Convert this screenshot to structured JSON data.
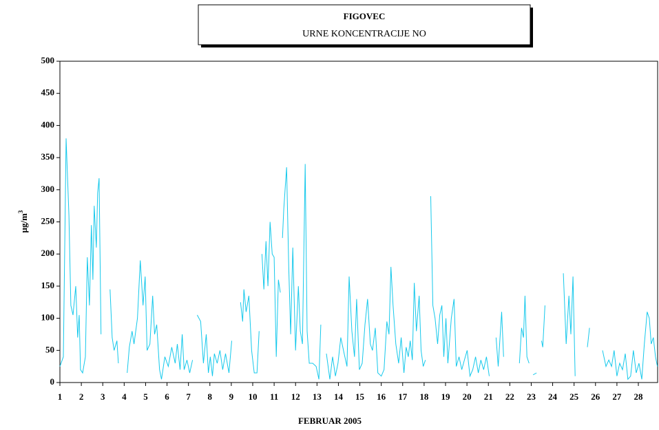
{
  "chart_data": {
    "type": "line",
    "title": "FIGOVEC",
    "subtitle": "URNE  KONCENTRACIJE  NO",
    "xlabel": "FEBRUAR  2005",
    "ylabel": "μg/m",
    "ylabel_superscript": "3",
    "xlim": [
      1,
      28.9
    ],
    "ylim": [
      0,
      500
    ],
    "xticks": [
      1,
      2,
      3,
      4,
      5,
      6,
      7,
      8,
      9,
      10,
      11,
      12,
      13,
      14,
      15,
      16,
      17,
      18,
      19,
      20,
      21,
      22,
      23,
      24,
      25,
      26,
      27,
      28
    ],
    "yticks": [
      0,
      50,
      100,
      150,
      200,
      250,
      300,
      350,
      400,
      450,
      500
    ],
    "grid": false,
    "series": [
      {
        "color": "#14c8eb",
        "x": [
          1.0,
          1.16,
          1.29,
          1.42,
          1.51,
          1.61,
          1.74,
          1.83,
          1.9,
          1.96,
          2.06,
          2.19,
          2.28,
          2.38,
          2.47,
          2.54,
          2.6,
          2.7,
          2.76,
          2.83,
          2.92,
          3.1,
          3.34,
          3.44,
          3.53,
          3.66,
          3.73,
          3.9,
          4.14,
          4.24,
          4.37,
          4.46,
          4.62,
          4.75,
          4.88,
          4.98,
          5.07,
          5.2,
          5.33,
          5.42,
          5.52,
          5.65,
          5.74,
          5.9,
          6.06,
          6.22,
          6.38,
          6.48,
          6.61,
          6.71,
          6.8,
          6.93,
          7.06,
          7.19,
          7.3,
          7.41,
          7.57,
          7.7,
          7.83,
          7.93,
          8.02,
          8.12,
          8.21,
          8.34,
          8.47,
          8.6,
          8.73,
          8.89,
          9.02,
          9.2,
          9.43,
          9.53,
          9.59,
          9.69,
          9.82,
          9.95,
          10.07,
          10.2,
          10.3,
          10.37,
          10.43,
          10.52,
          10.62,
          10.71,
          10.81,
          10.91,
          11.0,
          11.1,
          11.2,
          11.29,
          11.34,
          11.39,
          11.45,
          11.58,
          11.68,
          11.77,
          11.87,
          12.0,
          12.13,
          12.22,
          12.32,
          12.45,
          12.54,
          12.64,
          12.8,
          12.96,
          13.09,
          13.18,
          13.3,
          13.44,
          13.6,
          13.73,
          13.86,
          13.98,
          14.11,
          14.27,
          14.4,
          14.5,
          14.63,
          14.75,
          14.85,
          14.98,
          15.11,
          15.24,
          15.36,
          15.49,
          15.59,
          15.72,
          15.84,
          16.0,
          16.13,
          16.26,
          16.36,
          16.45,
          16.55,
          16.68,
          16.81,
          16.93,
          17.06,
          17.16,
          17.26,
          17.35,
          17.45,
          17.54,
          17.64,
          17.77,
          17.86,
          17.96,
          18.06,
          18.2,
          18.31,
          18.41,
          18.51,
          18.63,
          18.73,
          18.83,
          18.92,
          19.02,
          19.11,
          19.27,
          19.4,
          19.5,
          19.63,
          19.76,
          19.88,
          20.01,
          20.14,
          20.27,
          20.4,
          20.53,
          20.65,
          20.78,
          20.91,
          21.04,
          21.2,
          21.36,
          21.46,
          21.62,
          21.71,
          22.1,
          22.45,
          22.55,
          22.64,
          22.71,
          22.8,
          22.9,
          23.0,
          23.09,
          23.25,
          23.35,
          23.48,
          23.54,
          23.64,
          24.1,
          24.5,
          24.63,
          24.76,
          24.85,
          24.95,
          25.05,
          25.3,
          25.62,
          25.72,
          26.0,
          26.33,
          26.49,
          26.62,
          26.75,
          26.87,
          27.0,
          27.13,
          27.26,
          27.39,
          27.51,
          27.64,
          27.77,
          27.9,
          28.03,
          28.16,
          28.28,
          28.41,
          28.51,
          28.6,
          28.7,
          28.8,
          28.89
        ],
        "values": [
          25,
          40,
          380,
          260,
          120,
          105,
          150,
          70,
          105,
          20,
          15,
          40,
          195,
          120,
          245,
          160,
          275,
          210,
          295,
          318,
          75,
          null,
          145,
          70,
          50,
          65,
          30,
          null,
          15,
          55,
          80,
          60,
          100,
          190,
          120,
          165,
          50,
          60,
          135,
          75,
          90,
          20,
          5,
          40,
          25,
          55,
          30,
          60,
          20,
          75,
          20,
          35,
          15,
          35,
          null,
          105,
          95,
          30,
          75,
          15,
          40,
          10,
          45,
          30,
          50,
          20,
          45,
          15,
          65,
          null,
          125,
          95,
          145,
          110,
          135,
          50,
          15,
          15,
          80,
          null,
          200,
          145,
          220,
          150,
          250,
          200,
          195,
          40,
          160,
          140,
          null,
          225,
          270,
          335,
          180,
          75,
          210,
          50,
          150,
          80,
          60,
          340,
          80,
          30,
          30,
          25,
          5,
          90,
          null,
          45,
          5,
          40,
          10,
          30,
          70,
          45,
          25,
          165,
          80,
          40,
          130,
          20,
          30,
          90,
          130,
          60,
          50,
          85,
          15,
          10,
          20,
          95,
          75,
          180,
          120,
          60,
          30,
          70,
          15,
          55,
          40,
          65,
          35,
          155,
          80,
          135,
          50,
          25,
          35,
          null,
          290,
          120,
          100,
          60,
          105,
          120,
          40,
          100,
          30,
          100,
          130,
          25,
          40,
          20,
          35,
          50,
          10,
          20,
          40,
          15,
          35,
          20,
          40,
          10,
          null,
          70,
          25,
          110,
          40,
          null,
          30,
          85,
          70,
          135,
          40,
          30,
          null,
          12,
          15,
          null,
          65,
          55,
          120,
          null,
          170,
          60,
          135,
          75,
          165,
          10,
          null,
          55,
          85,
          null,
          50,
          25,
          35,
          25,
          50,
          10,
          30,
          20,
          45,
          5,
          10,
          50,
          15,
          30,
          5,
          60,
          110,
          100,
          60,
          70,
          40,
          25
        ]
      }
    ]
  }
}
